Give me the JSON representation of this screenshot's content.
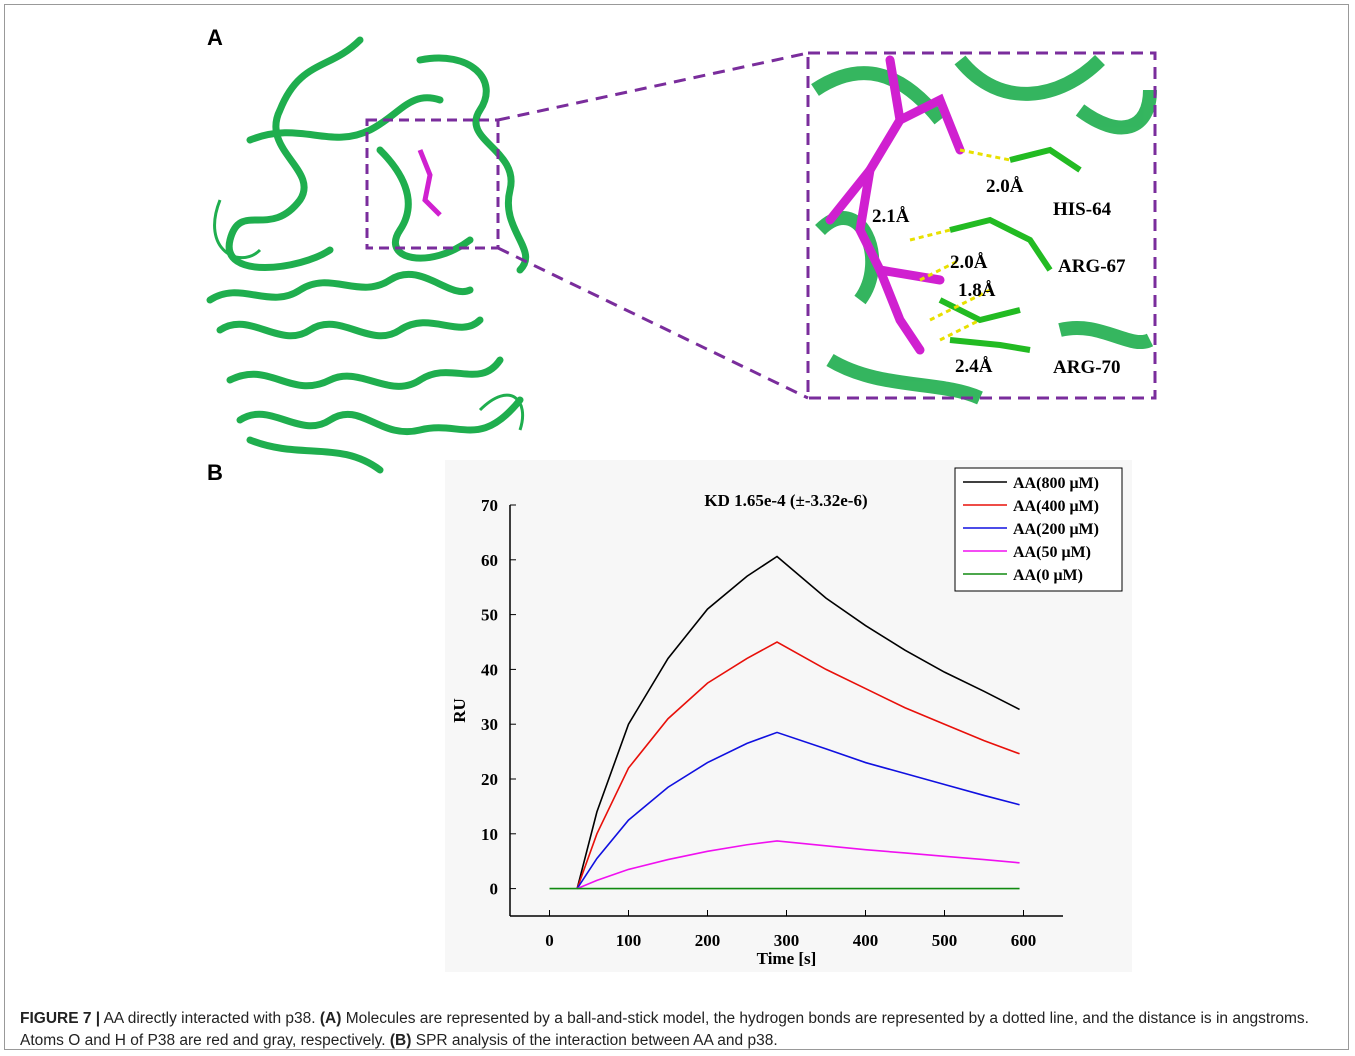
{
  "panel_a": {
    "label": "A",
    "residues": [
      "HIS-64",
      "ARG-67",
      "ARG-70"
    ],
    "distances": [
      "2.0Å",
      "2.1Å",
      "2.0Å",
      "1.8Å",
      "2.4Å"
    ]
  },
  "panel_b_label": "B",
  "chart_data": {
    "type": "line",
    "title": "KD 1.65e-4 (±-3.32e-6)",
    "x_label": "Time [s]",
    "y_label": "RU",
    "x": [
      0,
      35,
      60,
      100,
      150,
      200,
      250,
      288,
      350,
      400,
      450,
      500,
      550,
      595
    ],
    "series": [
      {
        "name": "AA(800 μM)",
        "color": "#000000",
        "values": [
          null,
          0,
          14,
          30,
          42,
          51,
          57,
          60.6,
          53,
          48,
          43.5,
          39.5,
          36,
          32.7
        ]
      },
      {
        "name": "AA(400 μM)",
        "color": "#e8100a",
        "values": [
          null,
          0,
          10,
          22,
          31,
          37.5,
          42,
          45,
          40,
          36.5,
          33,
          30,
          27,
          24.6
        ]
      },
      {
        "name": "AA(200 μM)",
        "color": "#1010e0",
        "values": [
          null,
          0,
          5.5,
          12.5,
          18.5,
          23,
          26.5,
          28.5,
          25.5,
          23,
          21,
          19,
          17,
          15.3
        ]
      },
      {
        "name": "AA(50 μM)",
        "color": "#f010f0",
        "values": [
          null,
          0,
          1.5,
          3.5,
          5.3,
          6.8,
          8,
          8.7,
          7.8,
          7.1,
          6.5,
          5.9,
          5.3,
          4.7
        ]
      },
      {
        "name": "AA(0 μM)",
        "color": "#108a10",
        "values": [
          0,
          0,
          0,
          0,
          0,
          0,
          0,
          0,
          0,
          0,
          0,
          0,
          0,
          0
        ]
      }
    ],
    "xlim": [
      -50,
      650
    ],
    "ylim": [
      -5,
      70
    ],
    "xticks": [
      0,
      100,
      200,
      300,
      400,
      500,
      600
    ],
    "yticks": [
      0,
      10,
      20,
      30,
      40,
      50,
      60,
      70
    ],
    "legend": "top-right"
  },
  "caption": {
    "label": "FIGURE 7 |",
    "lead": "AA directly interacted with p38.",
    "a_label": "(A)",
    "a_text": "Molecules are represented by a ball-and-stick model, the hydrogen bonds are represented by a dotted line, and the distance is in angstroms. Atoms O and H of P38 are red and gray, respectively.",
    "b_label": "(B)",
    "b_text": "SPR analysis of the interaction between AA and p38."
  }
}
